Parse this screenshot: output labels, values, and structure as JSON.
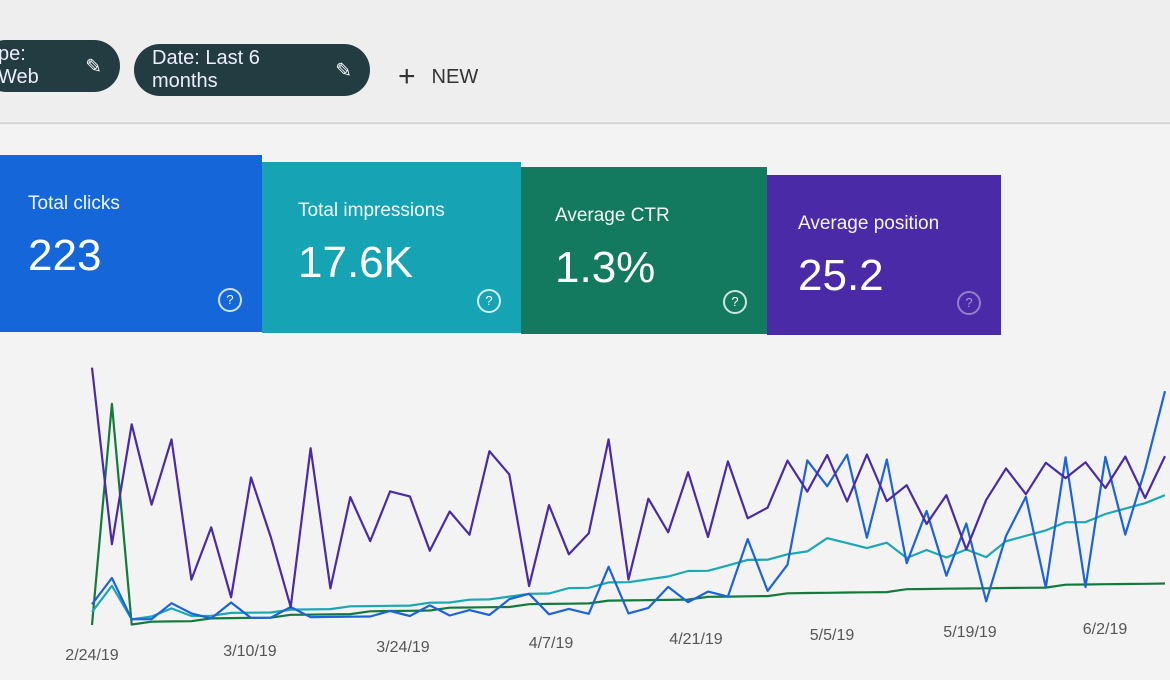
{
  "filters": [
    {
      "label": "pe: Web",
      "icon": "pencil-icon"
    },
    {
      "label": "Date: Last 6 months",
      "icon": "pencil-icon"
    }
  ],
  "new_button": {
    "icon": "plus-icon",
    "label": "NEW"
  },
  "cards": [
    {
      "label": "Total clicks",
      "value": "223",
      "color": "#1567d9",
      "help": "?"
    },
    {
      "label": "Total impressions",
      "value": "17.6K",
      "color": "#16a3b3",
      "help": "?"
    },
    {
      "label": "Average CTR",
      "value": "1.3%",
      "color": "#137a60",
      "help": "?"
    },
    {
      "label": "Average position",
      "value": "25.2",
      "color": "#4a2aa6",
      "help": "?"
    }
  ],
  "chart_data": {
    "type": "line",
    "x_tick_labels": [
      "2/24/19",
      "3/10/19",
      "3/24/19",
      "4/7/19",
      "4/21/19",
      "5/5/19",
      "5/19/19",
      "6/2/19"
    ],
    "grid": false,
    "series": [
      {
        "name": "Average position",
        "color": "#4a2aa6",
        "values": [
          99,
          31,
          77,
          46,
          71,
          17,
          37,
          10,
          56,
          33,
          6,
          67,
          13,
          48,
          31,
          50,
          48,
          27,
          42,
          33,
          65,
          56,
          13,
          44,
          25,
          33,
          69,
          15,
          46,
          33,
          56,
          31,
          60,
          38,
          42,
          60,
          48,
          62,
          44,
          62,
          44,
          50,
          35,
          46,
          25,
          44,
          56,
          46,
          58,
          52,
          58,
          48,
          60,
          44,
          60
        ]
      },
      {
        "name": "Total clicks",
        "color": "#1e63d8",
        "values": [
          8,
          18,
          2,
          2,
          8,
          4,
          2,
          8,
          2,
          2,
          6,
          2,
          2,
          2,
          2,
          4,
          2,
          6,
          2,
          4,
          2,
          8,
          10,
          2,
          4,
          2,
          20,
          2,
          4,
          12,
          6,
          10,
          8,
          30,
          10,
          20,
          60,
          50,
          62,
          30,
          60,
          20,
          40,
          15,
          35,
          5,
          30,
          45,
          10,
          60,
          10,
          60,
          30,
          55,
          85
        ]
      },
      {
        "name": "Total impressions",
        "color": "#1ba7b3",
        "values": [
          5,
          15,
          2,
          3,
          6,
          3,
          3,
          4,
          4,
          4,
          5,
          5,
          5,
          6,
          6,
          6,
          6,
          7,
          7,
          8,
          8,
          9,
          10,
          10,
          12,
          12,
          14,
          14,
          15,
          16,
          18,
          18,
          20,
          22,
          22,
          24,
          25,
          30,
          28,
          26,
          28,
          22,
          25,
          22,
          25,
          22,
          28,
          30,
          32,
          35,
          35,
          38,
          40,
          42,
          45
        ]
      },
      {
        "name": "Average CTR",
        "color": "#137a3e",
        "values": [
          0,
          85,
          0,
          1,
          1,
          1,
          2,
          2,
          2,
          2,
          3,
          3,
          3,
          3,
          4,
          4,
          4,
          4,
          5,
          5,
          5,
          5,
          6,
          6,
          6,
          6,
          7,
          7,
          7,
          7,
          7,
          8,
          8,
          8,
          8,
          9,
          9,
          9,
          9,
          9,
          9,
          10,
          10,
          10,
          10,
          10,
          10,
          10,
          10,
          11,
          11,
          11,
          11,
          11,
          11
        ]
      }
    ]
  }
}
